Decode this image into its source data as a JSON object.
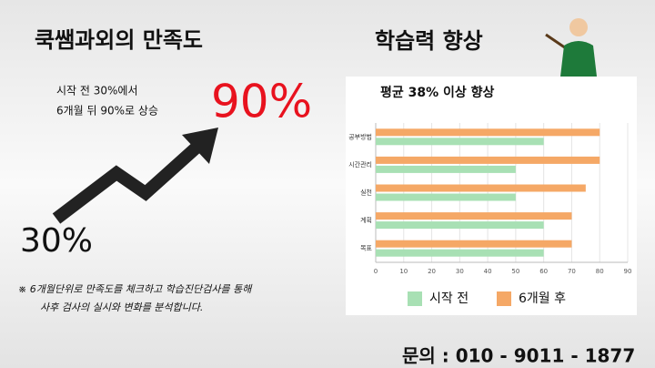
{
  "left_panel": {
    "title": "쿡쌤과외의 만족도",
    "summary": [
      "시작 전 30%에서",
      "6개월 뒤 90%로 상승"
    ],
    "after": "90%",
    "before": "30%",
    "note": [
      "※ 6개월단위로 만족도를 체크하고 학습진단검사를 통해",
      "사후 검사의 실시와 변화를 분석합니다."
    ]
  },
  "section_title": "학습력 향상",
  "contact": "문의 : 010 - 9011 - 1877",
  "chart_data": {
    "type": "bar",
    "orientation": "horizontal",
    "title": "평균 38% 이상 향상",
    "categories": [
      "공부방법",
      "시간관리",
      "실천",
      "계획",
      "목표"
    ],
    "series": [
      {
        "name": "시작 전",
        "color": "#a8e0b4",
        "values": [
          60,
          50,
          50,
          60,
          60
        ]
      },
      {
        "name": "6개월 후",
        "color": "#f5a866",
        "values": [
          80,
          80,
          75,
          70,
          70
        ]
      }
    ],
    "xlim": [
      0,
      90
    ],
    "xticks": [
      0,
      10,
      20,
      30,
      40,
      50,
      60,
      70,
      80,
      90
    ],
    "grid": true,
    "legend": "bottom"
  }
}
